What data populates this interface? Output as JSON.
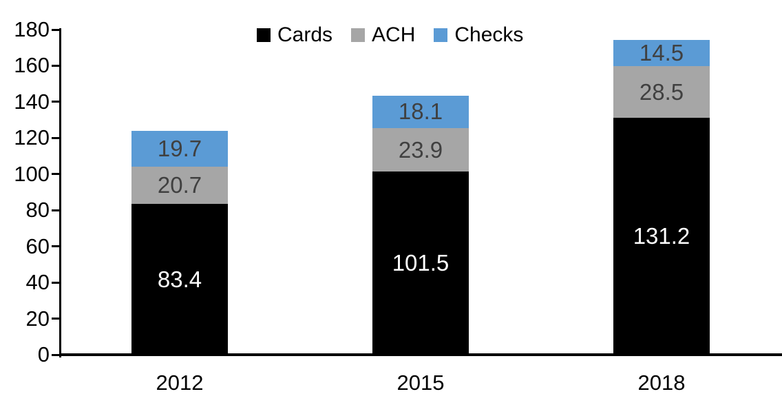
{
  "chart_data": {
    "type": "bar",
    "stacked": true,
    "categories": [
      "2012",
      "2015",
      "2018"
    ],
    "series": [
      {
        "name": "Cards",
        "color": "#000000",
        "label_color": "#ffffff",
        "values": [
          83.4,
          101.5,
          131.2
        ]
      },
      {
        "name": "ACH",
        "color": "#a6a6a6",
        "label_color": "#404040",
        "values": [
          20.7,
          23.9,
          28.5
        ]
      },
      {
        "name": "Checks",
        "color": "#5b9bd5",
        "label_color": "#404040",
        "values": [
          19.7,
          18.1,
          14.5
        ]
      }
    ],
    "ylim": [
      0,
      180
    ],
    "ytick_step": 20,
    "ytick_labels": [
      "0",
      "20",
      "40",
      "60",
      "80",
      "100",
      "120",
      "140",
      "160",
      "180"
    ],
    "grid": false,
    "legend_position": "top",
    "axis_color": "#000000"
  }
}
